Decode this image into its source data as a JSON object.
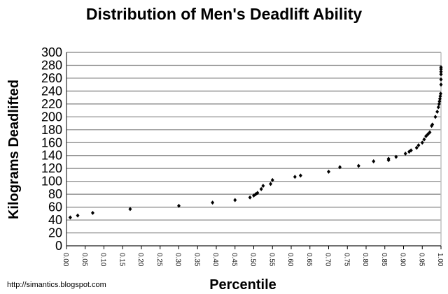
{
  "chart_data": {
    "type": "scatter",
    "title": "Distribution of Men's Deadlift Ability",
    "xlabel": "Percentile",
    "ylabel": "Kilograms Deadlifted",
    "xlim": [
      0,
      1
    ],
    "ylim": [
      0,
      300
    ],
    "xticks": [
      "0.00",
      "0.05",
      "0.10",
      "0.15",
      "0.20",
      "0.25",
      "0.30",
      "0.35",
      "0.40",
      "0.45",
      "0.50",
      "0.55",
      "0.60",
      "0.65",
      "0.70",
      "0.75",
      "0.80",
      "0.85",
      "0.90",
      "0.95",
      "1.00"
    ],
    "yticks": [
      "0",
      "20",
      "40",
      "60",
      "80",
      "100",
      "120",
      "140",
      "160",
      "180",
      "200",
      "220",
      "240",
      "260",
      "280",
      "300"
    ],
    "grid": true,
    "legend": "none",
    "points": [
      [
        0.01,
        44
      ],
      [
        0.03,
        47
      ],
      [
        0.07,
        51
      ],
      [
        0.17,
        57
      ],
      [
        0.3,
        62
      ],
      [
        0.39,
        67
      ],
      [
        0.45,
        71
      ],
      [
        0.49,
        75
      ],
      [
        0.5,
        78
      ],
      [
        0.505,
        80
      ],
      [
        0.51,
        82
      ],
      [
        0.52,
        88
      ],
      [
        0.525,
        93
      ],
      [
        0.545,
        96
      ],
      [
        0.55,
        102
      ],
      [
        0.61,
        107
      ],
      [
        0.625,
        109
      ],
      [
        0.7,
        115
      ],
      [
        0.73,
        122
      ],
      [
        0.78,
        124
      ],
      [
        0.82,
        131
      ],
      [
        0.86,
        133
      ],
      [
        0.86,
        135
      ],
      [
        0.88,
        138
      ],
      [
        0.905,
        143
      ],
      [
        0.915,
        146
      ],
      [
        0.92,
        148
      ],
      [
        0.935,
        152
      ],
      [
        0.94,
        156
      ],
      [
        0.95,
        160
      ],
      [
        0.955,
        165
      ],
      [
        0.96,
        170
      ],
      [
        0.965,
        173
      ],
      [
        0.97,
        176
      ],
      [
        0.975,
        186
      ],
      [
        0.977,
        188
      ],
      [
        0.985,
        200
      ],
      [
        0.99,
        208
      ],
      [
        0.993,
        215
      ],
      [
        0.995,
        220
      ],
      [
        0.996,
        224
      ],
      [
        0.997,
        228
      ],
      [
        0.998,
        232
      ],
      [
        0.999,
        236
      ],
      [
        1.0,
        250
      ],
      [
        1.0,
        258
      ],
      [
        1.0,
        266
      ],
      [
        1.0,
        270
      ],
      [
        1.0,
        274
      ],
      [
        1.0,
        277
      ]
    ]
  },
  "source_text": "http://simantics.blogspot.com"
}
